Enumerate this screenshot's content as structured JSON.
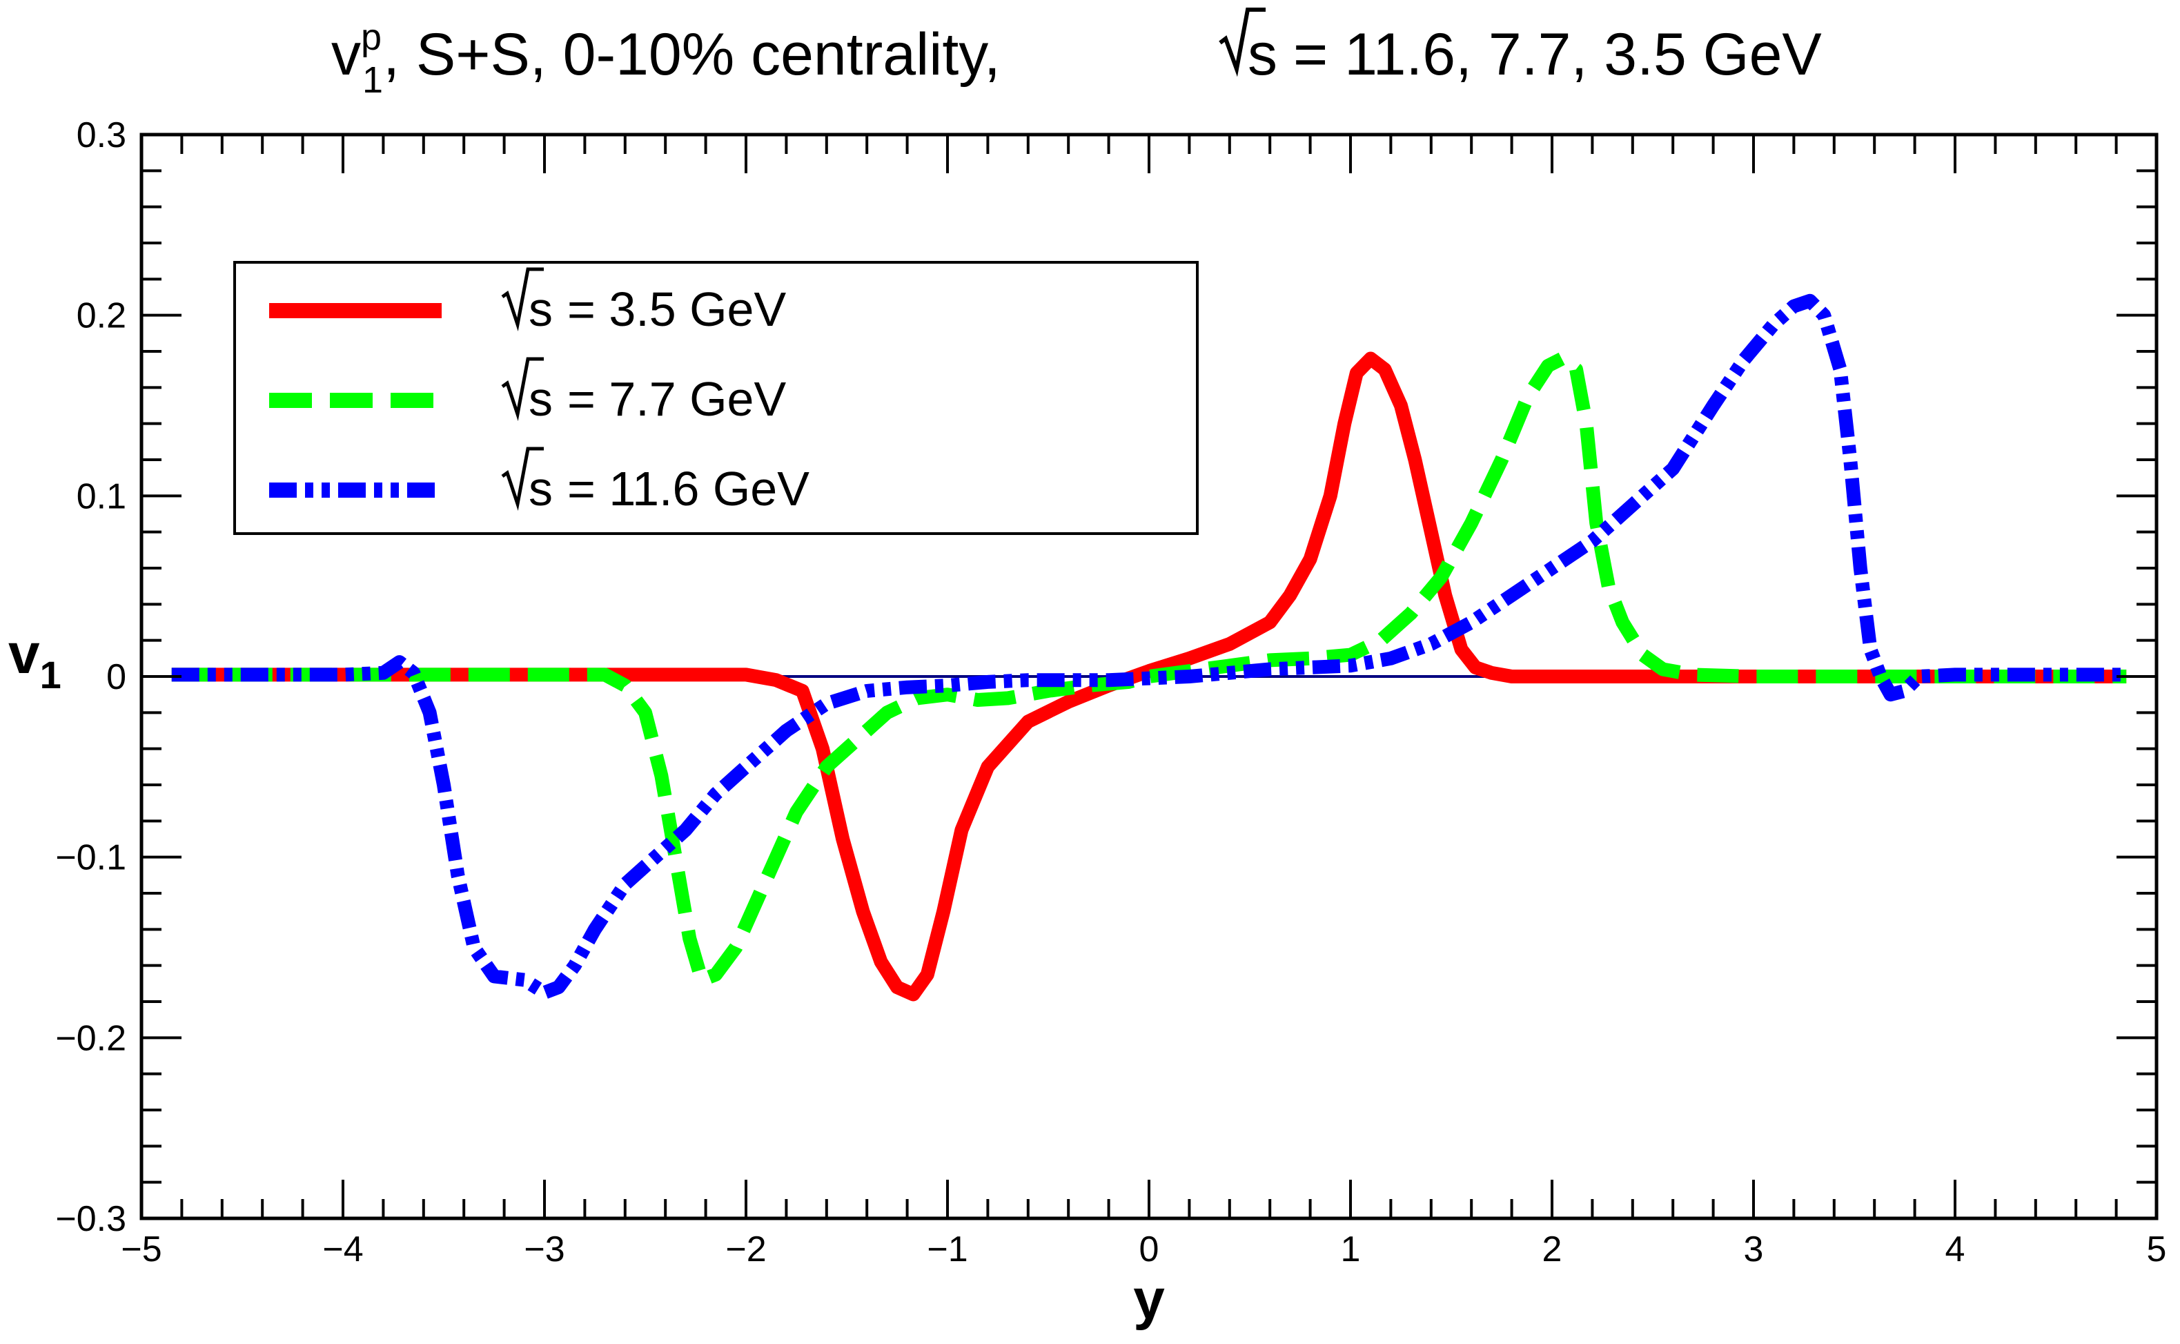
{
  "chart_data": {
    "type": "line",
    "title": {
      "v": "v",
      "sup": "p",
      "sub": "1",
      "rest": ", S+S, 0-10% centrality,",
      "sqrt_s": "s",
      "energies": "= 11.6, 7.7, 3.5 GeV"
    },
    "xlabel": "y",
    "ylabel": {
      "main": "v",
      "sub": "1"
    },
    "xlim": [
      -5,
      5
    ],
    "ylim": [
      -0.3,
      0.3
    ],
    "x_ticks": [
      {
        "value": -5,
        "label": "−5"
      },
      {
        "value": -4,
        "label": "−4"
      },
      {
        "value": -3,
        "label": "−3"
      },
      {
        "value": -2,
        "label": "−2"
      },
      {
        "value": -1,
        "label": "−1"
      },
      {
        "value": 0,
        "label": "0"
      },
      {
        "value": 1,
        "label": "1"
      },
      {
        "value": 2,
        "label": "2"
      },
      {
        "value": 3,
        "label": "3"
      },
      {
        "value": 4,
        "label": "4"
      },
      {
        "value": 5,
        "label": "5"
      }
    ],
    "y_ticks": [
      {
        "value": -0.3,
        "label": "−0.3"
      },
      {
        "value": -0.2,
        "label": "−0.2"
      },
      {
        "value": -0.1,
        "label": "−0.1"
      },
      {
        "value": 0,
        "label": "0"
      },
      {
        "value": 0.1,
        "label": "0.1"
      },
      {
        "value": 0.2,
        "label": "0.2"
      },
      {
        "value": 0.3,
        "label": "0.3"
      }
    ],
    "zero_line": {
      "from": -4.85,
      "to": 4.85,
      "color": "#000080"
    },
    "legend_position": "top-left",
    "series": [
      {
        "name": "3.5 GeV",
        "legend_prefix": "s",
        "legend_text": "= 3.5 GeV",
        "color": "#ff0000",
        "style": "solid",
        "x": [
          -4.85,
          -3.0,
          -2.0,
          -1.85,
          -1.72,
          -1.62,
          -1.52,
          -1.42,
          -1.33,
          -1.25,
          -1.17,
          -1.1,
          -1.02,
          -0.93,
          -0.8,
          -0.6,
          -0.4,
          -0.2,
          0.0,
          0.2,
          0.4,
          0.6,
          0.7,
          0.8,
          0.9,
          0.97,
          1.03,
          1.1,
          1.17,
          1.25,
          1.32,
          1.4,
          1.47,
          1.55,
          1.62,
          1.7,
          1.8,
          2.0,
          3.0,
          4.85
        ],
        "y": [
          0.001,
          0.001,
          0.001,
          -0.002,
          -0.008,
          -0.04,
          -0.09,
          -0.13,
          -0.158,
          -0.172,
          -0.176,
          -0.165,
          -0.13,
          -0.085,
          -0.05,
          -0.025,
          -0.014,
          -0.005,
          0.003,
          0.01,
          0.018,
          0.03,
          0.045,
          0.065,
          0.1,
          0.14,
          0.168,
          0.176,
          0.17,
          0.15,
          0.12,
          0.08,
          0.045,
          0.015,
          0.005,
          0.002,
          0.0,
          0.0,
          0.0,
          0.0
        ]
      },
      {
        "name": "7.7 GeV",
        "legend_prefix": "s",
        "legend_text": "= 7.7 GeV",
        "color": "#00ff00",
        "style": "dashed",
        "x": [
          -4.85,
          -2.7,
          -2.6,
          -2.5,
          -2.42,
          -2.35,
          -2.28,
          -2.22,
          -2.15,
          -2.05,
          -1.95,
          -1.85,
          -1.75,
          -1.6,
          -1.45,
          -1.3,
          -1.15,
          -1.0,
          -0.85,
          -0.7,
          -0.5,
          -0.3,
          -0.1,
          0.0,
          0.2,
          0.4,
          0.6,
          0.8,
          1.0,
          1.15,
          1.3,
          1.45,
          1.6,
          1.75,
          1.88,
          1.98,
          2.05,
          2.12,
          2.17,
          2.22,
          2.28,
          2.35,
          2.45,
          2.55,
          2.7,
          3.0,
          4.85
        ],
        "y": [
          0.001,
          0.001,
          -0.005,
          -0.02,
          -0.055,
          -0.1,
          -0.145,
          -0.168,
          -0.165,
          -0.15,
          -0.125,
          -0.1,
          -0.075,
          -0.05,
          -0.035,
          -0.02,
          -0.012,
          -0.01,
          -0.013,
          -0.012,
          -0.008,
          -0.005,
          -0.003,
          0.0,
          0.003,
          0.006,
          0.009,
          0.01,
          0.012,
          0.02,
          0.035,
          0.055,
          0.085,
          0.12,
          0.155,
          0.172,
          0.176,
          0.17,
          0.14,
          0.085,
          0.05,
          0.03,
          0.012,
          0.004,
          0.001,
          0.0,
          0.0
        ]
      },
      {
        "name": "11.6 GeV",
        "legend_prefix": "s",
        "legend_text": "= 11.6 GeV",
        "color": "#0000ff",
        "style": "dashdotdot",
        "x": [
          -4.85,
          -4.0,
          -3.8,
          -3.72,
          -3.65,
          -3.57,
          -3.5,
          -3.43,
          -3.35,
          -3.25,
          -3.1,
          -3.0,
          -2.93,
          -2.85,
          -2.75,
          -2.6,
          -2.45,
          -2.3,
          -2.15,
          -2.0,
          -1.8,
          -1.6,
          -1.4,
          -1.2,
          -1.0,
          -0.8,
          -0.6,
          -0.4,
          -0.2,
          0.0,
          0.2,
          0.4,
          0.6,
          0.8,
          1.0,
          1.2,
          1.4,
          1.6,
          1.8,
          2.0,
          2.2,
          2.4,
          2.6,
          2.8,
          2.95,
          3.1,
          3.2,
          3.28,
          3.35,
          3.43,
          3.48,
          3.53,
          3.58,
          3.63,
          3.68,
          3.75,
          3.82,
          4.0,
          4.85
        ],
        "y": [
          0.001,
          0.001,
          0.002,
          0.008,
          0.002,
          -0.02,
          -0.06,
          -0.11,
          -0.15,
          -0.166,
          -0.168,
          -0.175,
          -0.172,
          -0.16,
          -0.14,
          -0.115,
          -0.1,
          -0.085,
          -0.065,
          -0.05,
          -0.03,
          -0.015,
          -0.008,
          -0.006,
          -0.005,
          -0.003,
          -0.002,
          -0.002,
          -0.002,
          -0.001,
          0.0,
          0.002,
          0.004,
          0.005,
          0.006,
          0.01,
          0.018,
          0.03,
          0.045,
          0.06,
          0.075,
          0.095,
          0.115,
          0.15,
          0.175,
          0.195,
          0.205,
          0.208,
          0.2,
          0.17,
          0.12,
          0.06,
          0.015,
          0.0,
          -0.01,
          -0.008,
          0.0,
          0.001,
          0.001
        ]
      }
    ]
  }
}
